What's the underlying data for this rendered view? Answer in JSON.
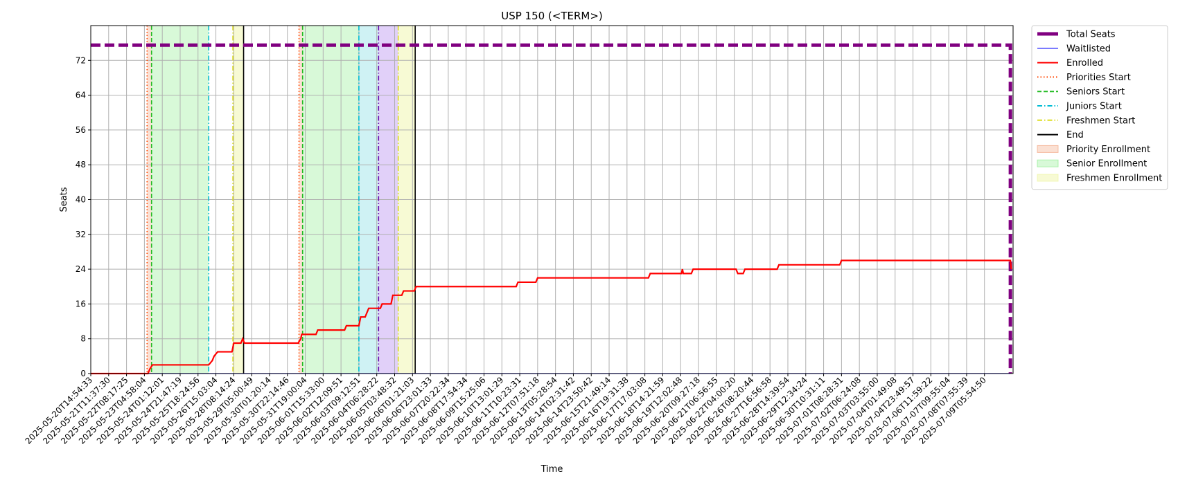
{
  "chart_data": {
    "type": "line",
    "title": "USP 150 (<TERM>)",
    "xlabel": "Time",
    "ylabel": "Seats",
    "ylim": [
      0,
      80
    ],
    "xlim": [
      0,
      51.6
    ],
    "yticks": [
      0,
      8,
      16,
      24,
      32,
      40,
      48,
      56,
      64,
      72
    ],
    "grid": true,
    "legend_position": "outside-right",
    "categories": [
      "2025-05-20T14:54:33",
      "2025-05-21T11:37:30",
      "2025-05-22T08:17:25",
      "2025-05-23T04:58:04",
      "2025-05-24T01:12:01",
      "2025-05-24T21:47:19",
      "2025-05-25T18:24:56",
      "2025-05-26T15:03:04",
      "2025-05-28T08:14:24",
      "2025-05-29T05:00:49",
      "2025-05-30T01:20:14",
      "2025-05-30T22:14:46",
      "2025-05-31T19:00:04",
      "2025-06-01T15:33:00",
      "2025-06-02T12:09:51",
      "2025-06-03T09:12:51",
      "2025-06-04T06:28:22",
      "2025-06-05T03:48:32",
      "2025-06-06T01:21:03",
      "2025-06-06T23:01:33",
      "2025-06-07T20:22:34",
      "2025-06-08T17:54:34",
      "2025-06-09T15:25:06",
      "2025-06-10T13:01:29",
      "2025-06-11T10:23:31",
      "2025-06-12T07:51:18",
      "2025-06-13T05:28:54",
      "2025-06-14T02:31:42",
      "2025-06-14T23:50:42",
      "2025-06-15T21:49:14",
      "2025-06-16T19:31:38",
      "2025-06-17T17:03:08",
      "2025-06-18T14:21:59",
      "2025-06-19T12:02:48",
      "2025-06-20T09:27:18",
      "2025-06-21T06:56:55",
      "2025-06-22T04:00:20",
      "2025-06-26T08:20:44",
      "2025-06-27T16:56:58",
      "2025-06-28T14:39:54",
      "2025-06-29T12:34:24",
      "2025-06-30T10:31:11",
      "2025-07-01T08:28:31",
      "2025-07-02T06:24:08",
      "2025-07-03T03:55:00",
      "2025-07-04T01:49:08",
      "2025-07-04T23:49:57",
      "2025-07-06T11:59:22",
      "2025-07-07T09:55:04",
      "2025-07-08T07:55:39",
      "2025-07-09T05:54:50"
    ],
    "series": [
      {
        "name": "Total Seats",
        "color": "#800080",
        "style": "dashed-thick",
        "points": [
          [
            0,
            75.5
          ],
          [
            51.45,
            75.5
          ],
          [
            51.45,
            0
          ]
        ]
      },
      {
        "name": "Waitlisted",
        "color": "#0000ff",
        "style": "solid-thin",
        "points": [
          [
            0,
            0
          ],
          [
            51.45,
            0
          ]
        ]
      },
      {
        "name": "Enrolled",
        "color": "#ff0000",
        "style": "solid",
        "points": [
          [
            0,
            0
          ],
          [
            3.2,
            0
          ],
          [
            3.3,
            1
          ],
          [
            3.45,
            2
          ],
          [
            6.6,
            2
          ],
          [
            6.8,
            3
          ],
          [
            6.9,
            4
          ],
          [
            7.1,
            5
          ],
          [
            7.9,
            5
          ],
          [
            8.0,
            7
          ],
          [
            8.4,
            7
          ],
          [
            8.5,
            8
          ],
          [
            8.6,
            7
          ],
          [
            11.6,
            7
          ],
          [
            11.75,
            8
          ],
          [
            11.8,
            9
          ],
          [
            12.6,
            9
          ],
          [
            12.7,
            10
          ],
          [
            14.2,
            10
          ],
          [
            14.3,
            11
          ],
          [
            15.0,
            11
          ],
          [
            15.1,
            13
          ],
          [
            15.35,
            13
          ],
          [
            15.45,
            14
          ],
          [
            15.55,
            15
          ],
          [
            16.2,
            15
          ],
          [
            16.3,
            16
          ],
          [
            16.8,
            16
          ],
          [
            16.9,
            18
          ],
          [
            17.4,
            18
          ],
          [
            17.5,
            19
          ],
          [
            18.1,
            19
          ],
          [
            18.2,
            20
          ],
          [
            23.8,
            20
          ],
          [
            23.9,
            21
          ],
          [
            24.9,
            21
          ],
          [
            25.0,
            22
          ],
          [
            31.2,
            22
          ],
          [
            31.3,
            23
          ],
          [
            33.05,
            23
          ],
          [
            33.1,
            24
          ],
          [
            33.15,
            23
          ],
          [
            33.6,
            23
          ],
          [
            33.7,
            24
          ],
          [
            36.1,
            24
          ],
          [
            36.2,
            23
          ],
          [
            36.5,
            23
          ],
          [
            36.6,
            24
          ],
          [
            38.4,
            24
          ],
          [
            38.5,
            25
          ],
          [
            41.9,
            25
          ],
          [
            42.0,
            26
          ],
          [
            51.45,
            26
          ],
          [
            51.5,
            24
          ]
        ]
      }
    ],
    "vertical_markers": [
      {
        "name": "Priorities Start",
        "color": "#ff4500",
        "style": "dotted",
        "x": [
          3.15,
          11.65
        ]
      },
      {
        "name": "Seniors Start",
        "color": "#22bb22",
        "style": "dashed",
        "x": [
          3.4,
          11.85
        ]
      },
      {
        "name": "Juniors Start",
        "color": "#00bcd4",
        "style": "dashdot",
        "x": [
          6.6,
          15.0
        ]
      },
      {
        "name": "Freshmen Start",
        "color": "#dddd22",
        "style": "dashdot",
        "x": [
          7.95,
          17.2
        ]
      },
      {
        "name": "End",
        "color": "#000000",
        "style": "solid",
        "x": [
          8.55,
          18.15
        ]
      }
    ],
    "shaded_regions": [
      {
        "name": "Priority Enrollment",
        "color": "#f4a582",
        "opacity": 0.35,
        "legend": true,
        "ranges": [
          [
            3.15,
            3.4
          ],
          [
            11.65,
            11.85
          ]
        ]
      },
      {
        "name": "Senior Enrollment",
        "color": "#90ee90",
        "opacity": 0.35,
        "legend": true,
        "ranges": [
          [
            3.4,
            6.6
          ],
          [
            11.85,
            15.0
          ]
        ]
      },
      {
        "name": "",
        "color": "#5fd3dc",
        "opacity": 0.3,
        "legend": false,
        "ranges": [
          [
            15.0,
            16.1
          ]
        ]
      },
      {
        "name": "",
        "color": "#b38af0",
        "opacity": 0.4,
        "legend": false,
        "ranges": [
          [
            16.1,
            17.2
          ]
        ]
      },
      {
        "name": "Freshmen Enrollment",
        "color": "#eef5a0",
        "opacity": 0.45,
        "legend": true,
        "ranges": [
          [
            7.95,
            8.55
          ],
          [
            17.2,
            18.15
          ]
        ]
      }
    ],
    "extra_markers": [
      {
        "color": "#6a0dad",
        "style": "dashdot",
        "x": 16.1
      }
    ]
  }
}
